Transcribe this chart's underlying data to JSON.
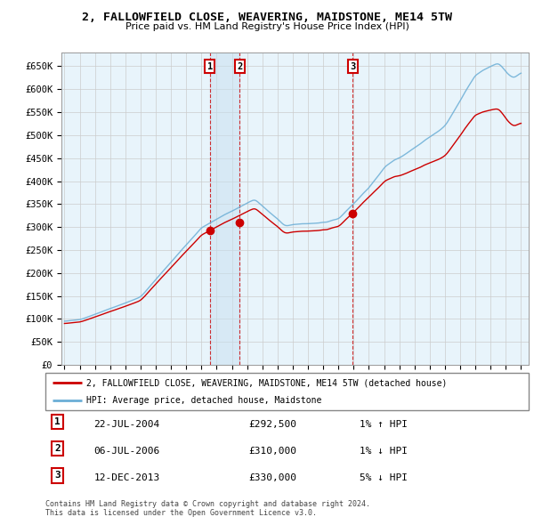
{
  "title": "2, FALLOWFIELD CLOSE, WEAVERING, MAIDSTONE, ME14 5TW",
  "subtitle": "Price paid vs. HM Land Registry's House Price Index (HPI)",
  "ylabel_ticks": [
    "£0",
    "£50K",
    "£100K",
    "£150K",
    "£200K",
    "£250K",
    "£300K",
    "£350K",
    "£400K",
    "£450K",
    "£500K",
    "£550K",
    "£600K",
    "£650K"
  ],
  "ytick_values": [
    0,
    50000,
    100000,
    150000,
    200000,
    250000,
    300000,
    350000,
    400000,
    450000,
    500000,
    550000,
    600000,
    650000
  ],
  "ylim": [
    0,
    680000
  ],
  "xlim_start": 1994.8,
  "xlim_end": 2025.5,
  "sale_dates": [
    2004.55,
    2006.51,
    2013.95
  ],
  "sale_prices": [
    292500,
    310000,
    330000
  ],
  "sale_labels": [
    "1",
    "2",
    "3"
  ],
  "hpi_color": "#6baed6",
  "price_color": "#cc0000",
  "legend_price_label": "2, FALLOWFIELD CLOSE, WEAVERING, MAIDSTONE, ME14 5TW (detached house)",
  "legend_hpi_label": "HPI: Average price, detached house, Maidstone",
  "table_entries": [
    {
      "label": "1",
      "date": "22-JUL-2004",
      "price": "£292,500",
      "change": "1% ↑ HPI"
    },
    {
      "label": "2",
      "date": "06-JUL-2006",
      "price": "£310,000",
      "change": "1% ↓ HPI"
    },
    {
      "label": "3",
      "date": "12-DEC-2013",
      "price": "£330,000",
      "change": "5% ↓ HPI"
    }
  ],
  "footnote": "Contains HM Land Registry data © Crown copyright and database right 2024.\nThis data is licensed under the Open Government Licence v3.0.",
  "bg_color": "#ffffff",
  "grid_color": "#cccccc",
  "plot_bg": "#e8f4fb"
}
